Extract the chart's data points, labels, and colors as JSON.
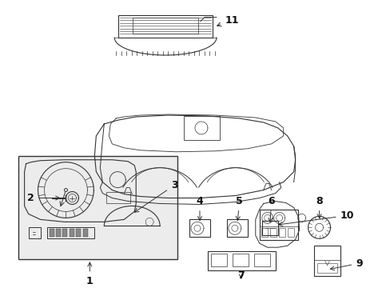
{
  "background_color": "#ffffff",
  "line_color": "#333333",
  "label_color": "#111111",
  "fig_width": 4.89,
  "fig_height": 3.6,
  "dpi": 100,
  "label_fontsize": 9,
  "arrow_lw": 0.7
}
